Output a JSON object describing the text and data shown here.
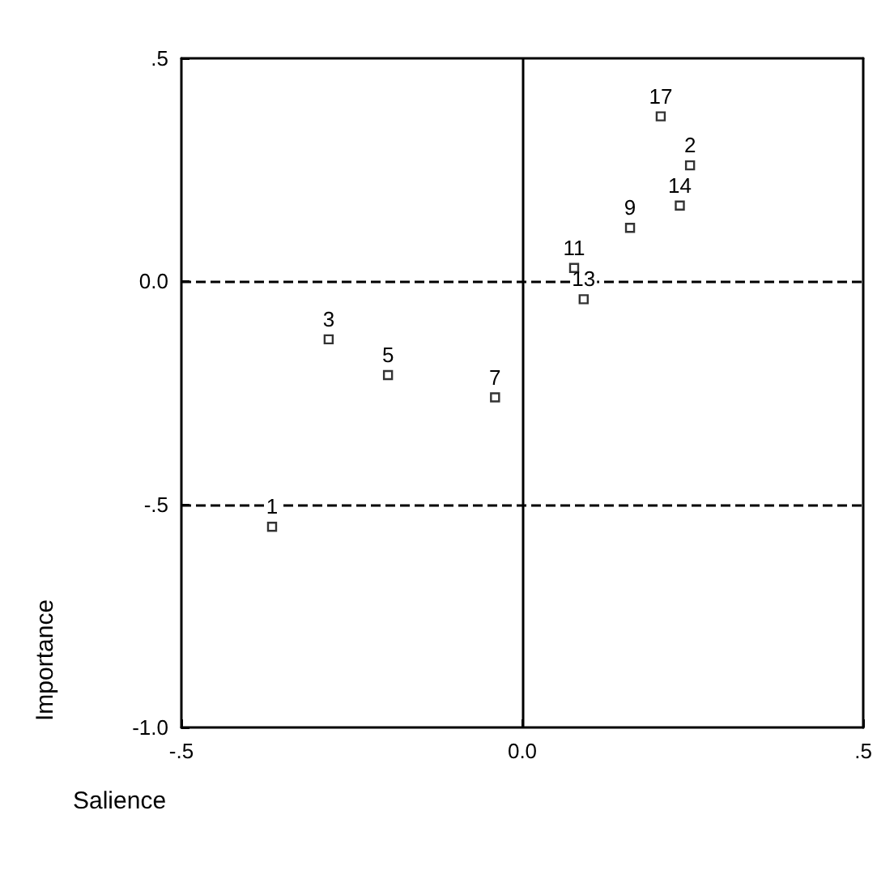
{
  "chart_data": {
    "type": "scatter",
    "xlabel": "Salience",
    "ylabel": "Importance",
    "x": [
      -0.367,
      0.246,
      -0.284,
      -0.197,
      -0.04,
      0.158,
      0.076,
      0.09,
      0.231,
      0.203
    ],
    "values": [
      -0.55,
      0.26,
      -0.13,
      -0.21,
      -0.26,
      0.12,
      0.03,
      -0.04,
      0.17,
      0.37
    ],
    "color": "#000000",
    "marker": "square",
    "xlim": [
      -0.5,
      0.5
    ],
    "xticks": [
      {
        "value": -0.5,
        "label": "-.5"
      },
      {
        "value": 0,
        "label": "0.0"
      },
      {
        "value": 0.5,
        "label": ".5"
      }
    ],
    "ylim": [
      -1.0,
      0.5
    ],
    "yticks": [
      {
        "value": -1.0,
        "label": "-1.0"
      },
      {
        "value": -0.5,
        "label": "-.5"
      },
      {
        "value": 0,
        "label": "0.0"
      },
      {
        "value": 0.5,
        "label": ".5"
      }
    ],
    "ref_lines": [
      {
        "axis": "y",
        "value": 0,
        "line_style": "dashed"
      },
      {
        "axis": "y",
        "value": -0.5,
        "line_style": "dashed"
      },
      {
        "axis": "x",
        "value": 0,
        "line_style": "solid"
      }
    ],
    "annotations": [
      {
        "text": "1",
        "x": -0.367,
        "y": -0.55
      },
      {
        "text": "2",
        "x": 0.246,
        "y": 0.26
      },
      {
        "text": "3",
        "x": -0.284,
        "y": -0.13
      },
      {
        "text": "5",
        "x": -0.197,
        "y": -0.21
      },
      {
        "text": "7",
        "x": -0.04,
        "y": -0.26
      },
      {
        "text": "9",
        "x": 0.158,
        "y": 0.12
      },
      {
        "text": "11",
        "x": 0.076,
        "y": 0.03
      },
      {
        "text": "13",
        "x": 0.09,
        "y": -0.04
      },
      {
        "text": "14",
        "x": 0.231,
        "y": 0.17
      },
      {
        "text": "17",
        "x": 0.203,
        "y": 0.37
      }
    ]
  }
}
